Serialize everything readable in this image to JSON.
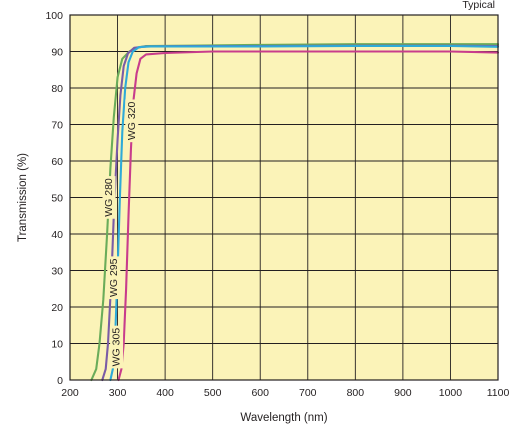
{
  "chart_data": {
    "type": "line",
    "title": "",
    "note": "Typical",
    "xlabel": "Wavelength (nm)",
    "ylabel": "Transmission (%)",
    "xlim": [
      200,
      1100
    ],
    "ylim": [
      0,
      100
    ],
    "x_ticks": [
      200,
      300,
      400,
      500,
      600,
      700,
      800,
      900,
      1000,
      1100
    ],
    "y_ticks": [
      0,
      10,
      20,
      30,
      40,
      50,
      60,
      70,
      80,
      90,
      100
    ],
    "grid": true,
    "background_color": "#fbf3b8",
    "series": [
      {
        "name": "WG 280",
        "color": "#6aac5a",
        "label_position": {
          "x": 282,
          "y": 50
        },
        "points": [
          [
            245,
            0
          ],
          [
            255,
            3
          ],
          [
            262,
            10
          ],
          [
            270,
            22
          ],
          [
            278,
            40
          ],
          [
            285,
            58
          ],
          [
            292,
            72
          ],
          [
            300,
            83
          ],
          [
            310,
            88
          ],
          [
            325,
            90
          ],
          [
            340,
            91
          ],
          [
            360,
            91.5
          ],
          [
            450,
            91.6
          ],
          [
            600,
            91.8
          ],
          [
            800,
            92
          ],
          [
            1000,
            92
          ],
          [
            1100,
            92
          ]
        ]
      },
      {
        "name": "WG 295",
        "color": "#7a5ca6",
        "label_position": {
          "x": 292,
          "y": 28
        },
        "points": [
          [
            268,
            0
          ],
          [
            275,
            3
          ],
          [
            280,
            10
          ],
          [
            287,
            28
          ],
          [
            293,
            48
          ],
          [
            300,
            66
          ],
          [
            306,
            78
          ],
          [
            313,
            86
          ],
          [
            322,
            89.5
          ],
          [
            335,
            91
          ],
          [
            360,
            91.4
          ],
          [
            450,
            91.5
          ],
          [
            600,
            91.5
          ],
          [
            800,
            91.6
          ],
          [
            1000,
            91.6
          ],
          [
            1100,
            91.5
          ]
        ]
      },
      {
        "name": "WG 305",
        "color": "#2eaad8",
        "label_position": {
          "x": 298,
          "y": 9
        },
        "points": [
          [
            285,
            0
          ],
          [
            290,
            3
          ],
          [
            295,
            12
          ],
          [
            300,
            30
          ],
          [
            305,
            50
          ],
          [
            310,
            68
          ],
          [
            316,
            80
          ],
          [
            323,
            87
          ],
          [
            332,
            90
          ],
          [
            345,
            91.2
          ],
          [
            370,
            91.4
          ],
          [
            450,
            91.4
          ],
          [
            600,
            91.4
          ],
          [
            800,
            91.5
          ],
          [
            1000,
            91.5
          ],
          [
            1100,
            91.3
          ]
        ]
      },
      {
        "name": "WG 320",
        "color": "#c83c8c",
        "label_position": {
          "x": 330,
          "y": 71
        },
        "points": [
          [
            302,
            0
          ],
          [
            308,
            3
          ],
          [
            313,
            10
          ],
          [
            318,
            25
          ],
          [
            323,
            45
          ],
          [
            328,
            63
          ],
          [
            333,
            76
          ],
          [
            340,
            84
          ],
          [
            348,
            88
          ],
          [
            360,
            89.2
          ],
          [
            400,
            89.6
          ],
          [
            500,
            90
          ],
          [
            600,
            90
          ],
          [
            800,
            90
          ],
          [
            1000,
            90
          ],
          [
            1100,
            89.7
          ]
        ]
      }
    ]
  }
}
